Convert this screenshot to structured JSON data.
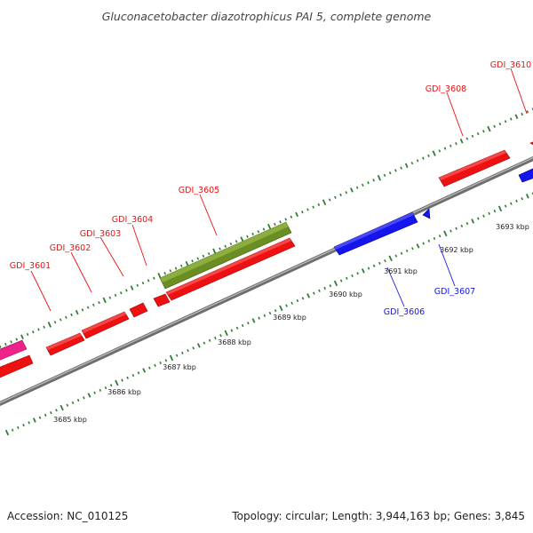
{
  "title": "Gluconacetobacter diazotrophicus PAI 5, complete genome",
  "footer": {
    "accession": "Accession: NC_010125",
    "stats": "Topology: circular; Length: 3,944,163 bp; Genes: 3,845"
  },
  "colors": {
    "forward": "#ee1111",
    "reverse": "#1515ee",
    "rna": "#6b8e23",
    "other": "#ee2288",
    "tick": "#2e7d32",
    "backbone": "#8c8c8c"
  },
  "axis": {
    "unit": "kbp",
    "tick_labels": [
      "3685 kbp",
      "3686 kbp",
      "3687 kbp",
      "3688 kbp",
      "3689 kbp",
      "3690 kbp",
      "3691 kbp",
      "3692 kbp",
      "3693 kbp"
    ]
  },
  "genes": [
    {
      "id": "GDI_3601",
      "label": "GDI_3601",
      "strand": "forward"
    },
    {
      "id": "GDI_3602",
      "label": "GDI_3602",
      "strand": "forward"
    },
    {
      "id": "GDI_3603",
      "label": "GDI_3603",
      "strand": "forward"
    },
    {
      "id": "GDI_3604",
      "label": "GDI_3604",
      "strand": "forward"
    },
    {
      "id": "GDI_3605",
      "label": "GDI_3605",
      "strand": "forward"
    },
    {
      "id": "GDI_3606",
      "label": "GDI_3606",
      "strand": "reverse"
    },
    {
      "id": "GDI_3607",
      "label": "GDI_3607",
      "strand": "reverse"
    },
    {
      "id": "GDI_3608",
      "label": "GDI_3608",
      "strand": "forward"
    },
    {
      "id": "GDI_3610",
      "label": "GDI_3610",
      "strand": "forward"
    }
  ]
}
